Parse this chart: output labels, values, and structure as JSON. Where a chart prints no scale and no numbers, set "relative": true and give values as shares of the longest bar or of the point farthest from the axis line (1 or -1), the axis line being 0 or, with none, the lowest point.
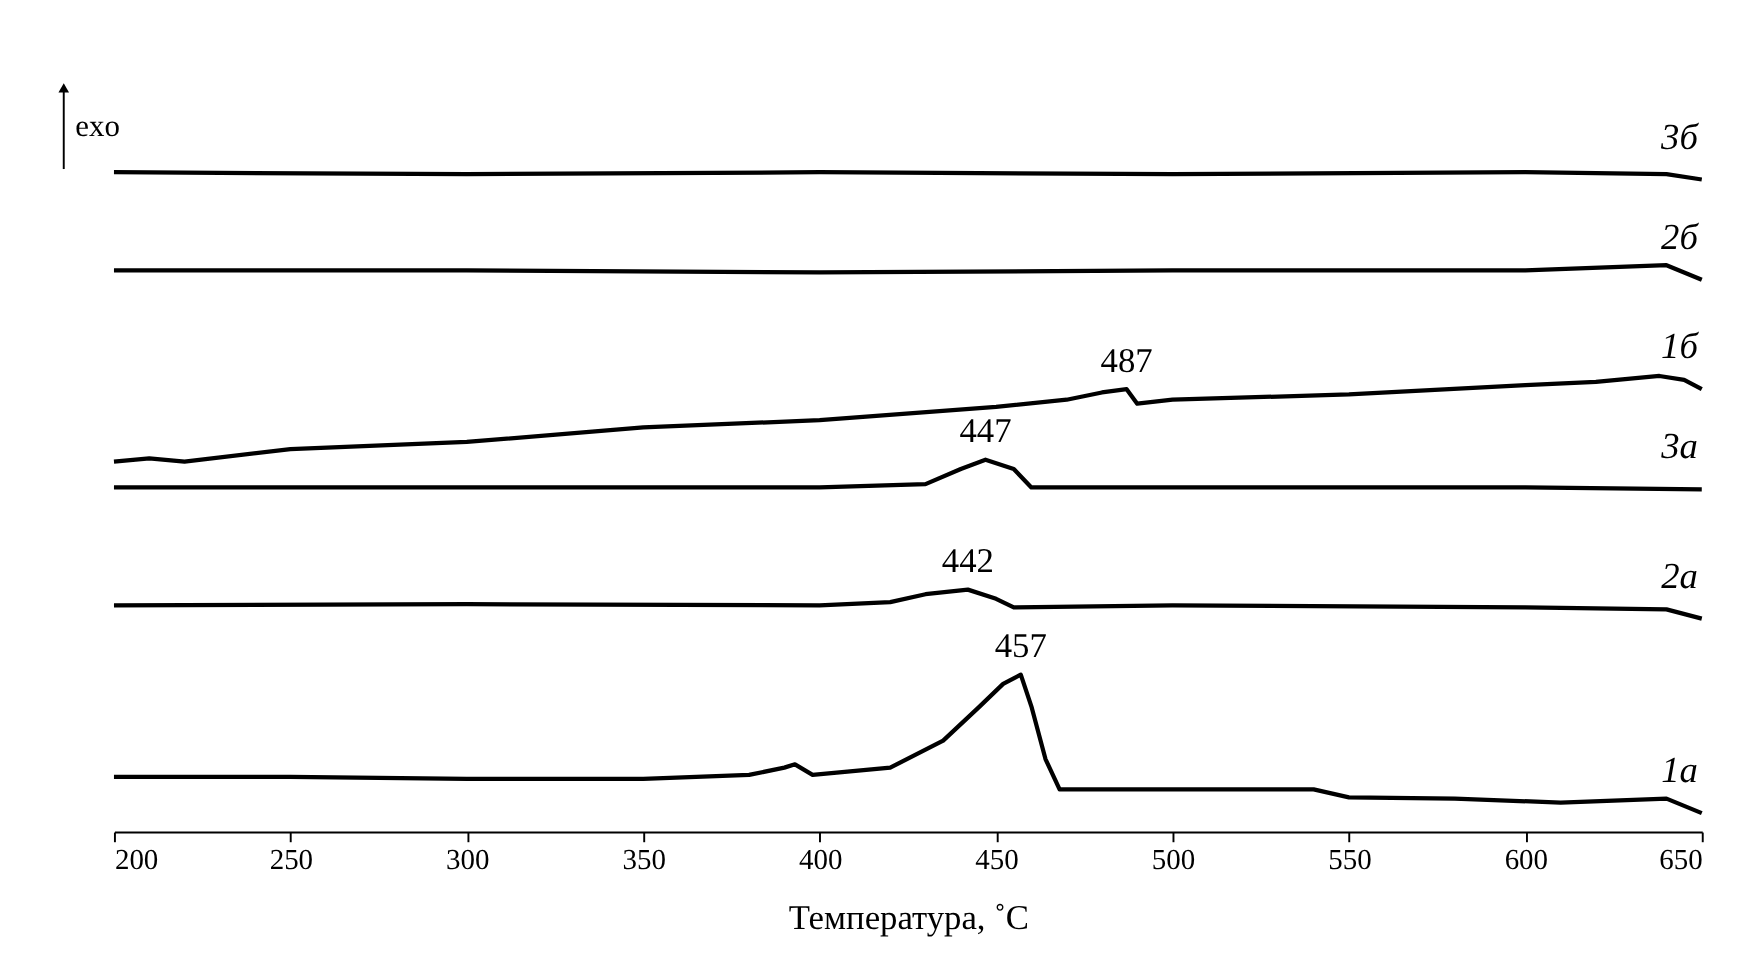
{
  "chart_data": {
    "type": "line",
    "relative": true,
    "xlabel": "Температура, ˚C",
    "xlim": [
      200,
      650
    ],
    "xticks": [
      200,
      250,
      300,
      350,
      400,
      450,
      500,
      550,
      600,
      650
    ],
    "tick_labels": "x",
    "grid": false,
    "legend": false,
    "marker": "none",
    "line_style": "solid",
    "annotations": [
      {
        "text": "487",
        "x": 487,
        "y": 0.671
      },
      {
        "text": "447",
        "x": 447,
        "y": 0.564
      },
      {
        "text": "442",
        "x": 442,
        "y": 0.367
      },
      {
        "text": "457",
        "x": 457,
        "y": 0.238
      },
      "exo"
    ],
    "series": [
      {
        "name": "3б",
        "color": "#000000",
        "x": [
          200,
          300,
          400,
          500,
          600,
          640,
          650
        ],
        "values": [
          1.0,
          0.997,
          1.0,
          0.997,
          1.0,
          0.997,
          0.989
        ]
      },
      {
        "name": "2б",
        "color": "#000000",
        "x": [
          200,
          300,
          400,
          500,
          600,
          640,
          650
        ],
        "values": [
          0.851,
          0.851,
          0.848,
          0.851,
          0.851,
          0.859,
          0.837
        ]
      },
      {
        "name": "1б",
        "color": "#000000",
        "x": [
          200,
          210,
          220,
          250,
          300,
          350,
          400,
          450,
          470,
          480,
          487,
          490,
          500,
          550,
          600,
          620,
          638,
          645,
          650
        ],
        "values": [
          0.561,
          0.566,
          0.561,
          0.58,
          0.591,
          0.613,
          0.624,
          0.644,
          0.655,
          0.666,
          0.671,
          0.649,
          0.655,
          0.663,
          0.677,
          0.682,
          0.691,
          0.685,
          0.671
        ]
      },
      {
        "name": "3а",
        "color": "#000000",
        "x": [
          200,
          300,
          400,
          430,
          440,
          447,
          455,
          460,
          500,
          600,
          650
        ],
        "values": [
          0.522,
          0.522,
          0.522,
          0.527,
          0.55,
          0.564,
          0.55,
          0.522,
          0.522,
          0.522,
          0.519
        ]
      },
      {
        "name": "2а",
        "color": "#000000",
        "x": [
          200,
          300,
          400,
          420,
          430,
          442,
          450,
          455,
          500,
          600,
          640,
          650
        ],
        "values": [
          0.343,
          0.345,
          0.343,
          0.348,
          0.36,
          0.367,
          0.353,
          0.34,
          0.343,
          0.34,
          0.337,
          0.323
        ]
      },
      {
        "name": "1а",
        "color": "#000000",
        "x": [
          200,
          250,
          300,
          350,
          380,
          390,
          393,
          398,
          420,
          435,
          445,
          452,
          457,
          460,
          464,
          468,
          500,
          540,
          550,
          580,
          610,
          640,
          650
        ],
        "values": [
          0.083,
          0.083,
          0.08,
          0.08,
          0.086,
          0.097,
          0.102,
          0.086,
          0.097,
          0.138,
          0.188,
          0.224,
          0.238,
          0.19,
          0.11,
          0.064,
          0.064,
          0.064,
          0.052,
          0.05,
          0.044,
          0.05,
          0.028
        ]
      }
    ]
  }
}
